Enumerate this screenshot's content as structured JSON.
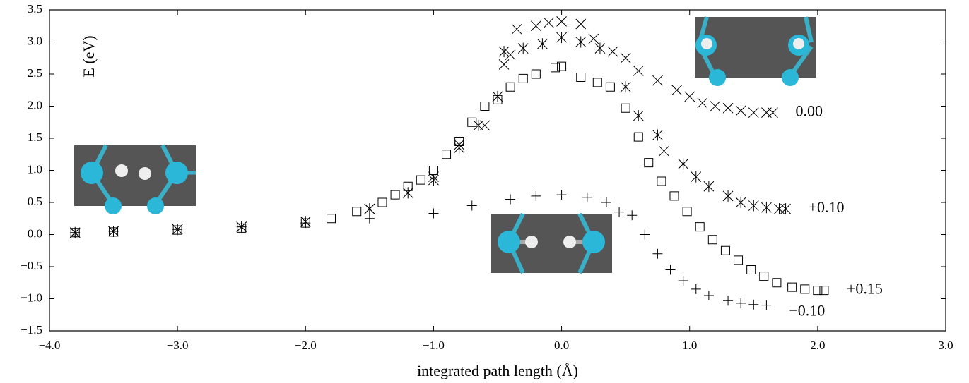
{
  "chart_data": {
    "type": "scatter",
    "xlabel": "integrated path length (Å)",
    "ylabel": "E (eV)",
    "xlim": [
      -4.0,
      3.0
    ],
    "ylim": [
      -1.5,
      3.5
    ],
    "xticks": [
      {
        "value": -4.0,
        "label": "−4.0"
      },
      {
        "value": -3.0,
        "label": "−3.0"
      },
      {
        "value": -2.0,
        "label": "−2.0"
      },
      {
        "value": -1.0,
        "label": "−1.0"
      },
      {
        "value": 0.0,
        "label": "0.0"
      },
      {
        "value": 1.0,
        "label": "1.0"
      },
      {
        "value": 2.0,
        "label": "2.0"
      },
      {
        "value": 3.0,
        "label": "3.0"
      }
    ],
    "yticks": [
      {
        "value": -1.5,
        "label": "−1.5"
      },
      {
        "value": -1.0,
        "label": "−1.0"
      },
      {
        "value": -0.5,
        "label": "−0.5"
      },
      {
        "value": 0.0,
        "label": "0.0"
      },
      {
        "value": 0.5,
        "label": "0.5"
      },
      {
        "value": 1.0,
        "label": "1.0"
      },
      {
        "value": 1.5,
        "label": "1.5"
      },
      {
        "value": 2.0,
        "label": "2.0"
      },
      {
        "value": 2.5,
        "label": "2.5"
      },
      {
        "value": 3.0,
        "label": "3.0"
      },
      {
        "value": 3.5,
        "label": "3.5"
      }
    ],
    "series": [
      {
        "name": "0.00",
        "color": "#000000",
        "marker": "x",
        "x": [
          -3.8,
          -3.5,
          -3.0,
          -2.5,
          -2.0,
          -1.5,
          -1.0,
          -0.8,
          -0.6,
          -0.45,
          -0.4,
          -0.35,
          -0.2,
          -0.1,
          0.0,
          0.15,
          0.25,
          0.4,
          0.5,
          0.6,
          0.75,
          0.9,
          1.0,
          1.1,
          1.2,
          1.3,
          1.4,
          1.5,
          1.6,
          1.65
        ],
        "values": [
          0.03,
          0.05,
          0.08,
          0.12,
          0.2,
          0.4,
          0.9,
          1.4,
          1.7,
          2.65,
          2.8,
          3.2,
          3.25,
          3.3,
          3.32,
          3.28,
          3.05,
          2.85,
          2.75,
          2.55,
          2.4,
          2.25,
          2.15,
          2.05,
          2.0,
          1.97,
          1.93,
          1.9,
          1.9,
          1.9
        ]
      },
      {
        "name": "+0.10",
        "color": "#000000",
        "marker": "asterisk",
        "x": [
          -3.8,
          -3.5,
          -3.0,
          -2.5,
          -2.0,
          -1.5,
          -1.2,
          -1.0,
          -0.8,
          -0.65,
          -0.5,
          -0.45,
          -0.3,
          -0.15,
          0.0,
          0.15,
          0.3,
          0.5,
          0.6,
          0.75,
          0.8,
          0.95,
          1.05,
          1.15,
          1.3,
          1.4,
          1.5,
          1.6,
          1.7,
          1.75
        ],
        "values": [
          0.03,
          0.05,
          0.08,
          0.12,
          0.2,
          0.4,
          0.65,
          0.85,
          1.35,
          1.7,
          2.15,
          2.85,
          2.9,
          2.97,
          3.07,
          3.0,
          2.9,
          2.3,
          1.85,
          1.55,
          1.3,
          1.1,
          0.9,
          0.75,
          0.6,
          0.5,
          0.45,
          0.42,
          0.4,
          0.4
        ]
      },
      {
        "name": "+0.15",
        "color": "#000000",
        "marker": "square",
        "x": [
          -3.8,
          -3.5,
          -3.0,
          -2.5,
          -2.0,
          -1.8,
          -1.6,
          -1.4,
          -1.3,
          -1.2,
          -1.1,
          -1.0,
          -0.9,
          -0.8,
          -0.7,
          -0.6,
          -0.5,
          -0.4,
          -0.3,
          -0.2,
          -0.05,
          0.0,
          0.15,
          0.28,
          0.38,
          0.5,
          0.6,
          0.68,
          0.78,
          0.88,
          0.98,
          1.08,
          1.18,
          1.28,
          1.38,
          1.48,
          1.58,
          1.68,
          1.8,
          1.9,
          2.0,
          2.05
        ],
        "values": [
          0.03,
          0.04,
          0.07,
          0.1,
          0.18,
          0.25,
          0.36,
          0.5,
          0.62,
          0.75,
          0.85,
          1.0,
          1.25,
          1.45,
          1.75,
          2.0,
          2.1,
          2.3,
          2.43,
          2.5,
          2.6,
          2.62,
          2.45,
          2.37,
          2.3,
          1.97,
          1.52,
          1.12,
          0.83,
          0.6,
          0.36,
          0.12,
          -0.08,
          -0.25,
          -0.4,
          -0.55,
          -0.65,
          -0.75,
          -0.82,
          -0.85,
          -0.87,
          -0.87
        ]
      },
      {
        "name": "−0.10",
        "color": "#000000",
        "marker": "plus",
        "x": [
          -3.8,
          -3.5,
          -3.0,
          -2.5,
          -2.0,
          -1.5,
          -1.0,
          -0.7,
          -0.4,
          -0.2,
          0.0,
          0.2,
          0.35,
          0.45,
          0.55,
          0.65,
          0.75,
          0.85,
          0.95,
          1.05,
          1.15,
          1.3,
          1.4,
          1.5,
          1.6
        ],
        "values": [
          0.03,
          0.05,
          0.08,
          0.12,
          0.18,
          0.25,
          0.33,
          0.45,
          0.55,
          0.6,
          0.62,
          0.58,
          0.5,
          0.35,
          0.3,
          0.0,
          -0.3,
          -0.55,
          -0.72,
          -0.85,
          -0.95,
          -1.03,
          -1.07,
          -1.09,
          -1.1
        ]
      }
    ]
  }
}
